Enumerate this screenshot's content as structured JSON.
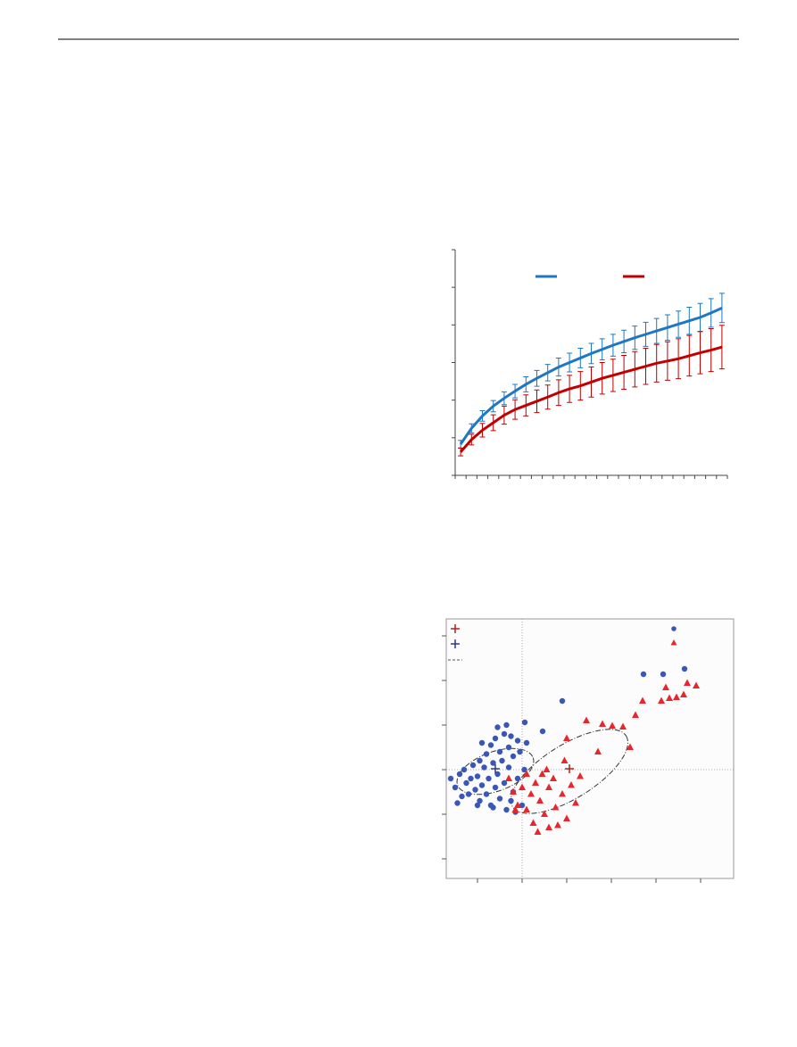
{
  "chart_data": [
    {
      "type": "line",
      "x": [
        1,
        2,
        3,
        4,
        5,
        6,
        7,
        8,
        9,
        10,
        11,
        12,
        13,
        14,
        15,
        16,
        17,
        18,
        19,
        20,
        21,
        22,
        23,
        24,
        25
      ],
      "xlim": [
        0.5,
        25.5
      ],
      "xticks": [
        0.5,
        1.5,
        2.5,
        3.5,
        4.5,
        5.5,
        6.5,
        7.5,
        8.5,
        9.5,
        10.5,
        11.5,
        12.5,
        13.5,
        14.5,
        15.5,
        16.5,
        17.5,
        18.5,
        19.5,
        20.5,
        21.5,
        22.5,
        23.5,
        24.5,
        25.5
      ],
      "ylim": [
        0,
        6
      ],
      "yticks": [
        0,
        1,
        2,
        3,
        4,
        5,
        6
      ],
      "series": [
        {
          "color": "#1f77c4",
          "values": [
            0.83,
            1.25,
            1.58,
            1.84,
            2.05,
            2.24,
            2.42,
            2.58,
            2.73,
            2.88,
            3.0,
            3.12,
            3.24,
            3.35,
            3.46,
            3.56,
            3.66,
            3.75,
            3.84,
            3.93,
            4.02,
            4.11,
            4.2,
            4.32,
            4.45
          ],
          "errors": [
            0.1,
            0.12,
            0.14,
            0.15,
            0.17,
            0.18,
            0.2,
            0.21,
            0.22,
            0.24,
            0.25,
            0.26,
            0.27,
            0.28,
            0.29,
            0.3,
            0.31,
            0.32,
            0.33,
            0.34,
            0.35,
            0.36,
            0.37,
            0.38,
            0.39
          ]
        },
        {
          "color": "#c00000",
          "values": [
            0.62,
            0.95,
            1.2,
            1.4,
            1.6,
            1.75,
            1.86,
            1.97,
            2.08,
            2.2,
            2.3,
            2.38,
            2.48,
            2.58,
            2.66,
            2.74,
            2.82,
            2.9,
            2.98,
            3.04,
            3.1,
            3.18,
            3.26,
            3.33,
            3.41
          ],
          "errors": [
            0.1,
            0.14,
            0.18,
            0.21,
            0.24,
            0.26,
            0.28,
            0.3,
            0.32,
            0.34,
            0.36,
            0.38,
            0.4,
            0.42,
            0.43,
            0.45,
            0.47,
            0.48,
            0.5,
            0.51,
            0.53,
            0.54,
            0.56,
            0.57,
            0.58
          ]
        }
      ]
    },
    {
      "type": "scatter",
      "xlim": [
        -1.7,
        4.74
      ],
      "xticks": [
        -1,
        0,
        1,
        2,
        3,
        4
      ],
      "ylim": [
        -2.44,
        3.38
      ],
      "yticks": [
        -2,
        -1,
        0,
        1,
        2,
        3
      ],
      "reference_lines": {
        "x": 0,
        "y": 0
      },
      "series": [
        {
          "color": "#3a57b8",
          "marker": "circle",
          "x": [
            -1.5,
            -1.4,
            -1.35,
            -1.3,
            -1.25,
            -1.2,
            -1.15,
            -1.1,
            -1.05,
            -1.0,
            -0.95,
            -0.95,
            -0.9,
            -0.85,
            -0.8,
            -0.8,
            -0.75,
            -0.7,
            -0.7,
            -0.65,
            -0.6,
            -0.6,
            -0.55,
            -0.5,
            -0.5,
            -0.45,
            -0.4,
            -0.4,
            -0.35,
            -0.3,
            -0.3,
            -0.25,
            -0.2,
            -0.2,
            -0.15,
            -0.1,
            -0.1,
            -0.05,
            0.0,
            0.05,
            0.1,
            -1.6,
            -1.45,
            -0.9,
            -0.55,
            -0.25,
            0.06,
            0.46,
            0.9,
            2.72,
            3.16,
            3.64,
            -0.65,
            -1.0,
            -0.35
          ],
          "y": [
            -0.4,
            -0.1,
            -0.6,
            0.0,
            -0.3,
            -0.55,
            -0.2,
            0.1,
            -0.45,
            -0.15,
            0.2,
            -0.7,
            -0.35,
            0.05,
            -0.55,
            0.35,
            -0.2,
            0.55,
            -0.8,
            0.15,
            -0.4,
            0.7,
            -0.1,
            0.4,
            -0.65,
            0.2,
            0.8,
            -0.3,
            -0.9,
            0.5,
            0.05,
            0.75,
            -0.5,
            0.3,
            -0.95,
            0.65,
            -0.2,
            0.4,
            -0.8,
            0.0,
            0.6,
            -0.2,
            -0.75,
            0.6,
            0.95,
            -0.7,
            1.06,
            0.86,
            1.54,
            2.14,
            2.14,
            2.26,
            -0.85,
            -0.8,
            1.0
          ]
        },
        {
          "color": "#e8262e",
          "marker": "triangle",
          "x": [
            -0.1,
            0.0,
            0.1,
            0.1,
            0.2,
            0.25,
            0.3,
            0.4,
            0.45,
            0.5,
            0.6,
            0.6,
            0.7,
            0.75,
            0.8,
            0.9,
            0.95,
            1.0,
            1.0,
            1.1,
            1.2,
            1.3,
            -0.2,
            -0.15,
            0.35,
            0.55,
            1.44,
            1.8,
            2.02,
            2.26,
            2.54,
            2.42,
            2.7,
            3.22,
            3.12,
            3.3,
            3.46,
            3.62,
            3.7,
            3.9,
            1.7,
            -0.3
          ],
          "y": [
            -0.8,
            -0.4,
            -0.1,
            -0.9,
            -0.55,
            -1.2,
            -0.3,
            -0.7,
            -0.1,
            -1.0,
            -0.4,
            -1.3,
            -0.2,
            -0.85,
            -1.25,
            -0.55,
            0.2,
            -1.1,
            0.7,
            -0.35,
            -0.75,
            -0.15,
            -0.5,
            -0.9,
            -1.4,
            0.0,
            1.1,
            1.02,
            0.98,
            0.96,
            1.22,
            0.5,
            1.54,
            1.84,
            1.54,
            1.6,
            1.62,
            1.68,
            1.94,
            1.88,
            0.4,
            -0.2
          ]
        }
      ],
      "centroids": [
        {
          "color": "#b22222",
          "x": 1.06,
          "y": 0.02
        },
        {
          "color": "#2e3a8c",
          "x": -0.6,
          "y": 0.02
        }
      ]
    }
  ]
}
